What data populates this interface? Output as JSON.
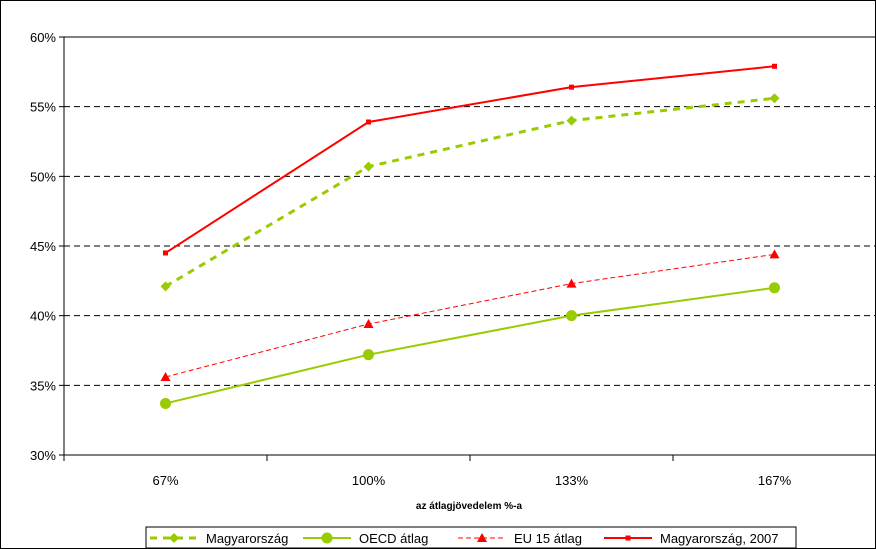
{
  "chart_data": {
    "type": "line",
    "xlabel": "az átlagjövedelem %-a",
    "ylabel": "",
    "categories": [
      "67%",
      "100%",
      "133%",
      "167%"
    ],
    "ylim": [
      30,
      60
    ],
    "yticks": [
      30,
      35,
      40,
      45,
      50,
      55,
      60
    ],
    "ytick_labels": [
      "30%",
      "35%",
      "40%",
      "45%",
      "50%",
      "55%",
      "60%"
    ],
    "grid": "horizontal dashed",
    "legend_position": "bottom",
    "series": [
      {
        "name": "Magyarország",
        "values": [
          42.1,
          50.7,
          54.0,
          55.6
        ],
        "color": "#99CC00",
        "line": "dashed",
        "marker": "diamond"
      },
      {
        "name": "OECD átlag",
        "values": [
          33.7,
          37.2,
          40.0,
          42.0
        ],
        "color": "#99CC00",
        "line": "solid",
        "marker": "circle"
      },
      {
        "name": "EU 15 átlag",
        "values": [
          35.6,
          39.4,
          42.3,
          44.4
        ],
        "color": "#FF0000",
        "line": "dashed",
        "marker": "triangle"
      },
      {
        "name": "Magyarország, 2007",
        "values": [
          44.5,
          53.9,
          56.4,
          57.9
        ],
        "color": "#FF0000",
        "line": "solid",
        "marker": "square"
      }
    ]
  }
}
